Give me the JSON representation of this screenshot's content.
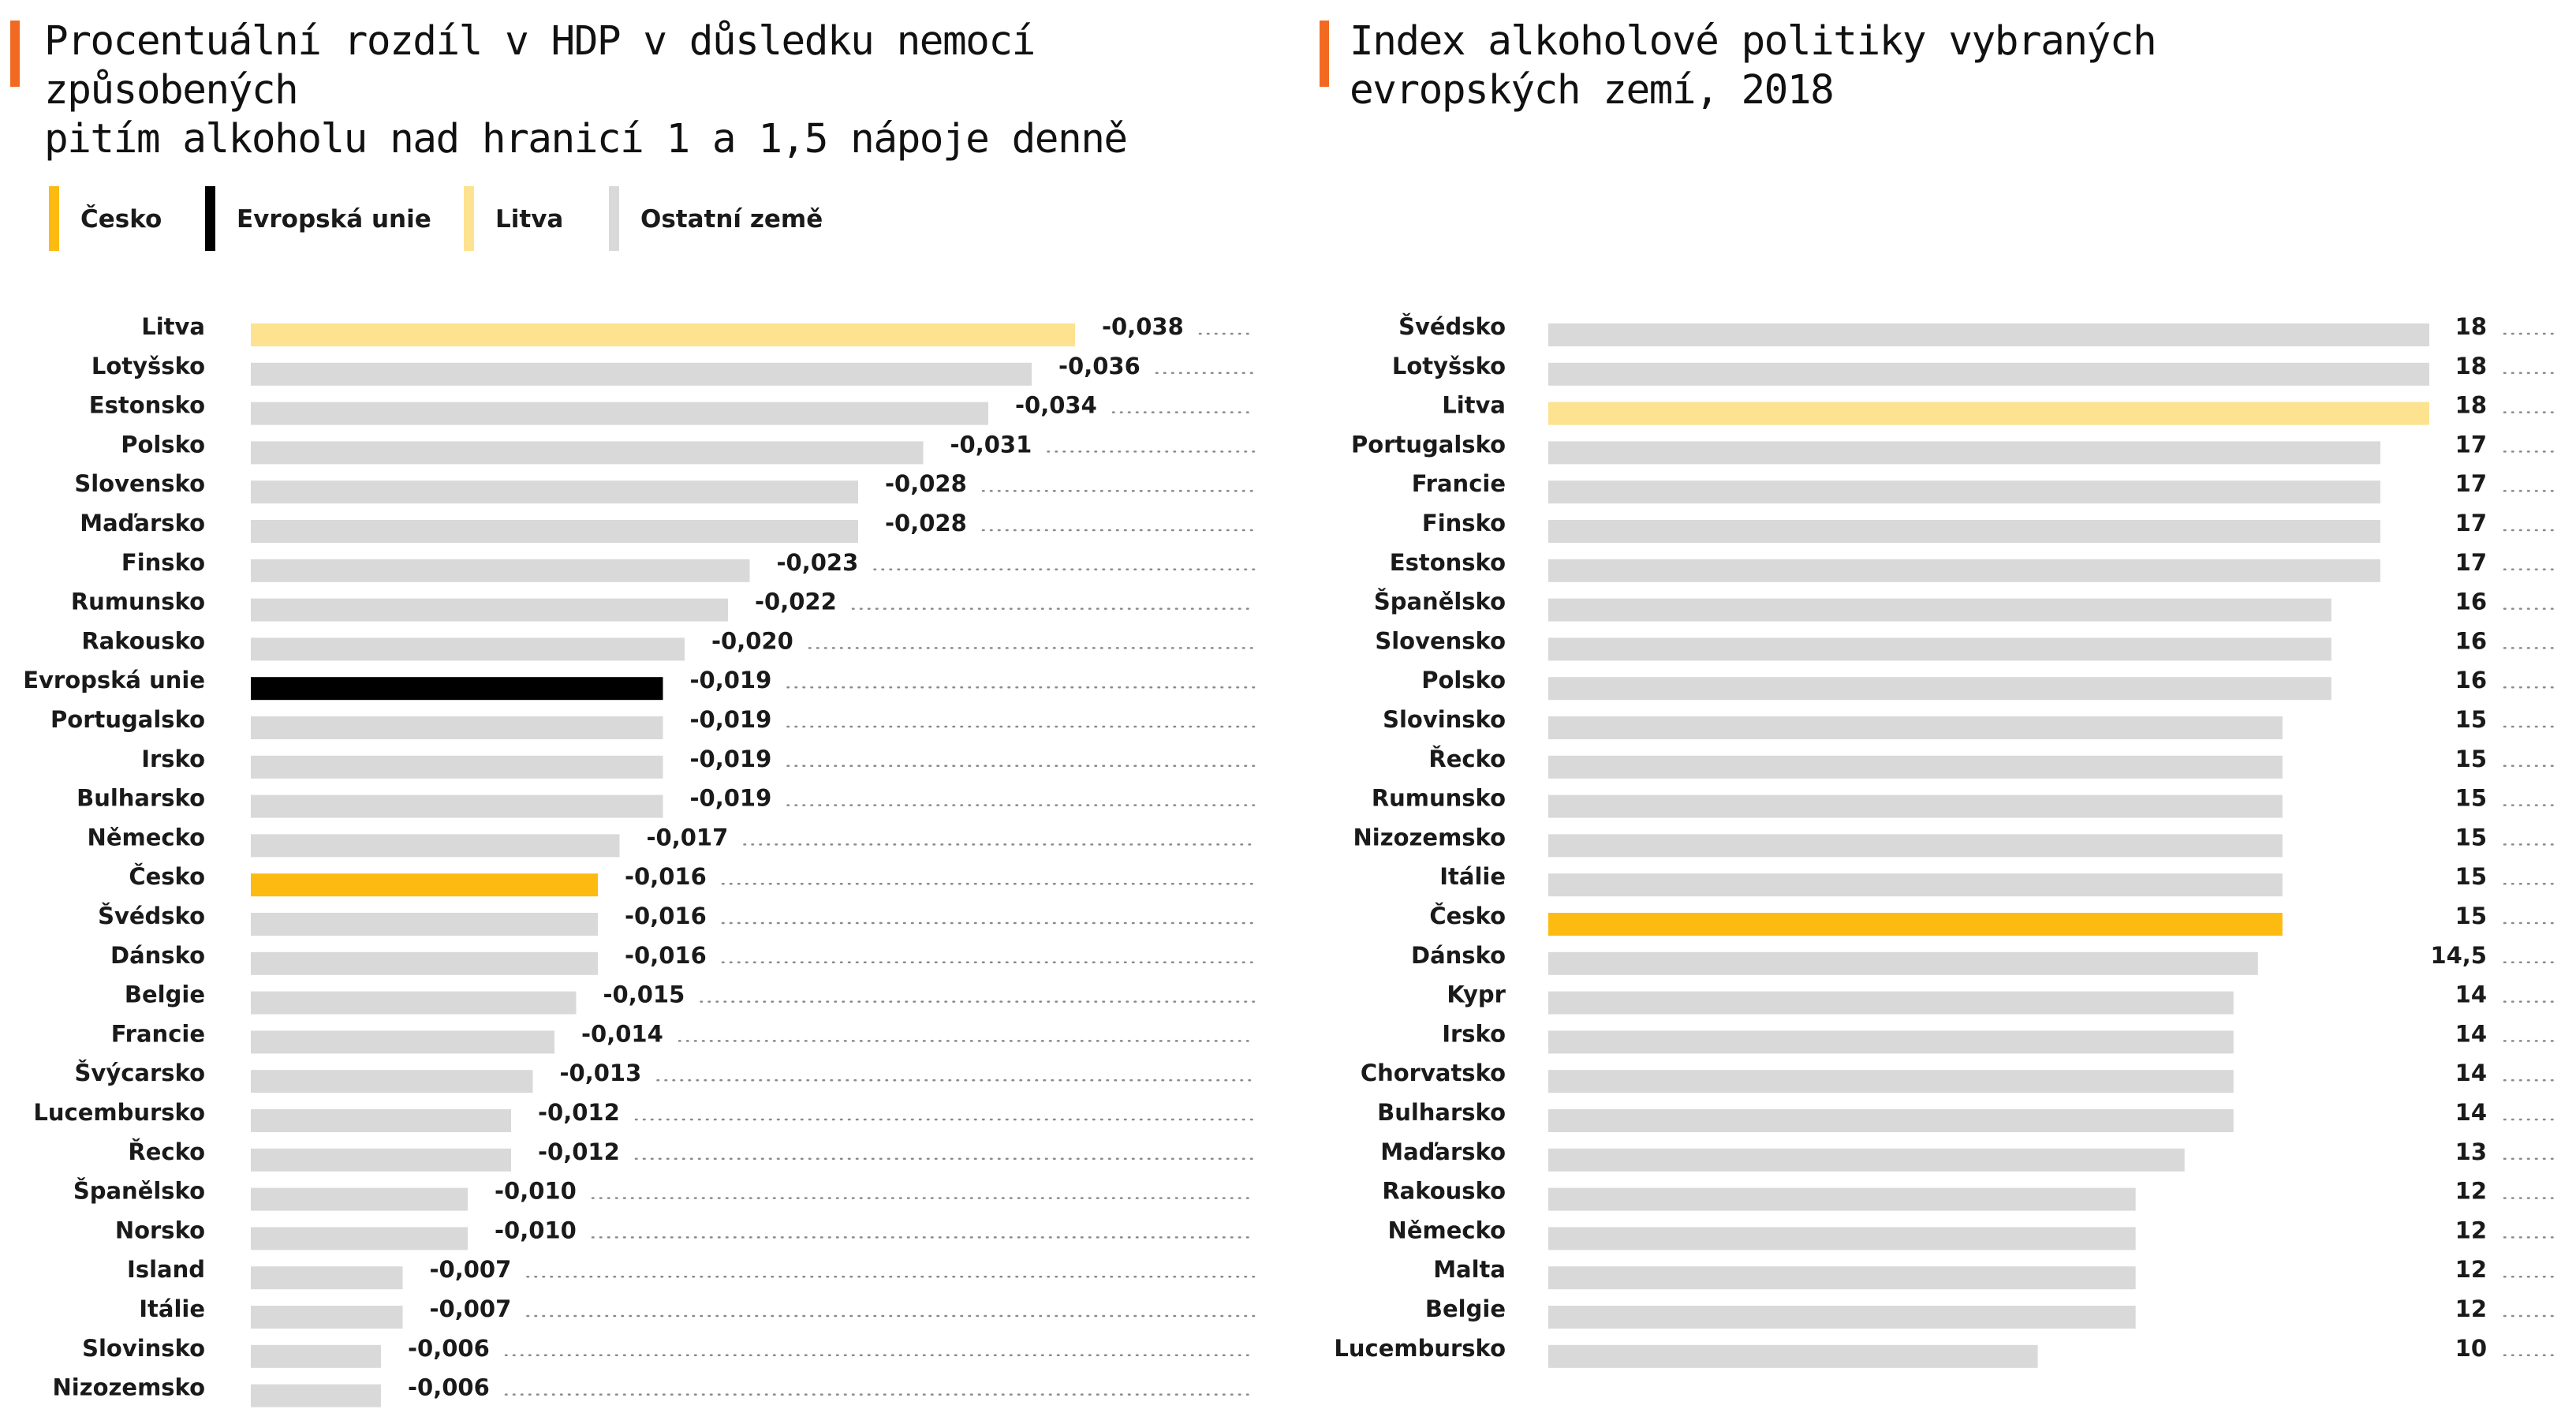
{
  "colors": {
    "accent": "#f26a21",
    "cesko": "#fdbb12",
    "eu": "#000000",
    "litva": "#fde28f",
    "other": "#d9d9d9"
  },
  "legend": [
    {
      "label": "Česko",
      "color": "#fdbb12"
    },
    {
      "label": "Evropská unie",
      "color": "#000000"
    },
    {
      "label": "Litva",
      "color": "#fde28f"
    },
    {
      "label": "Ostatní země",
      "color": "#d9d9d9"
    }
  ],
  "chart_data": [
    {
      "type": "bar",
      "orientation": "horizontal",
      "title": "Procentuální rozdíl v HDP v důsledku nemocí způsobených pitím alkoholu nad hranicí 1 a 1,5 nápoje denně",
      "title_lines": [
        "Procentuální rozdíl v HDP v důsledku nemocí způsobených",
        "pitím alkoholu nad hranicí 1 a 1,5 nápoje denně"
      ],
      "categories": [
        "Litva",
        "Lotyšsko",
        "Estonsko",
        "Polsko",
        "Slovensko",
        "Maďarsko",
        "Finsko",
        "Rumunsko",
        "Rakousko",
        "Evropská unie",
        "Portugalsko",
        "Irsko",
        "Bulharsko",
        "Německo",
        "Česko",
        "Švédsko",
        "Dánsko",
        "Belgie",
        "Francie",
        "Švýcarsko",
        "Lucembursko",
        "Řecko",
        "Španělsko",
        "Norsko",
        "Island",
        "Itálie",
        "Slovinsko",
        "Nizozemsko"
      ],
      "values": [
        -0.038,
        -0.036,
        -0.034,
        -0.031,
        -0.028,
        -0.028,
        -0.023,
        -0.022,
        -0.02,
        -0.019,
        -0.019,
        -0.019,
        -0.019,
        -0.017,
        -0.016,
        -0.016,
        -0.016,
        -0.015,
        -0.014,
        -0.013,
        -0.012,
        -0.012,
        -0.01,
        -0.01,
        -0.007,
        -0.007,
        -0.006,
        -0.006
      ],
      "labels": [
        "-0,038",
        "-0,036",
        "-0,034",
        "-0,031",
        "-0,028",
        "-0,028",
        "-0,023",
        "-0,022",
        "-0,020",
        "-0,019",
        "-0,019",
        "-0,019",
        "-0,019",
        "-0,017",
        "-0,016",
        "-0,016",
        "-0,016",
        "-0,015",
        "-0,014",
        "-0,013",
        "-0,012",
        "-0,012",
        "-0,010",
        "-0,010",
        "-0,007",
        "-0,007",
        "-0,006",
        "-0,006"
      ],
      "highlight": {
        "Česko": "#fdbb12",
        "Evropská unie": "#000000",
        "Litva": "#fde28f"
      },
      "default_color": "#d9d9d9",
      "scale_max": 0.038
    },
    {
      "type": "bar",
      "orientation": "horizontal",
      "title": "Index alkoholové politiky vybraných evropských zemí, 2018",
      "title_lines": [
        "Index alkoholové politiky vybraných",
        "evropských zemí, 2018"
      ],
      "categories": [
        "Švédsko",
        "Lotyšsko",
        "Litva",
        "Portugalsko",
        "Francie",
        "Finsko",
        "Estonsko",
        "Španělsko",
        "Slovensko",
        "Polsko",
        "Slovinsko",
        "Řecko",
        "Rumunsko",
        "Nizozemsko",
        "Itálie",
        "Česko",
        "Dánsko",
        "Kypr",
        "Irsko",
        "Chorvatsko",
        "Bulharsko",
        "Maďarsko",
        "Rakousko",
        "Německo",
        "Malta",
        "Belgie",
        "Lucembursko"
      ],
      "values": [
        18,
        18,
        18,
        17,
        17,
        17,
        17,
        16,
        16,
        16,
        15,
        15,
        15,
        15,
        15,
        15,
        14.5,
        14,
        14,
        14,
        14,
        13,
        12,
        12,
        12,
        12,
        10
      ],
      "labels": [
        "18",
        "18",
        "18",
        "17",
        "17",
        "17",
        "17",
        "16",
        "16",
        "16",
        "15",
        "15",
        "15",
        "15",
        "15",
        "15",
        "14,5",
        "14",
        "14",
        "14",
        "14",
        "13",
        "12",
        "12",
        "12",
        "12",
        "10"
      ],
      "highlight": {
        "Česko": "#fdbb12",
        "Litva": "#fde28f"
      },
      "default_color": "#d9d9d9",
      "scale_max": 18
    }
  ]
}
